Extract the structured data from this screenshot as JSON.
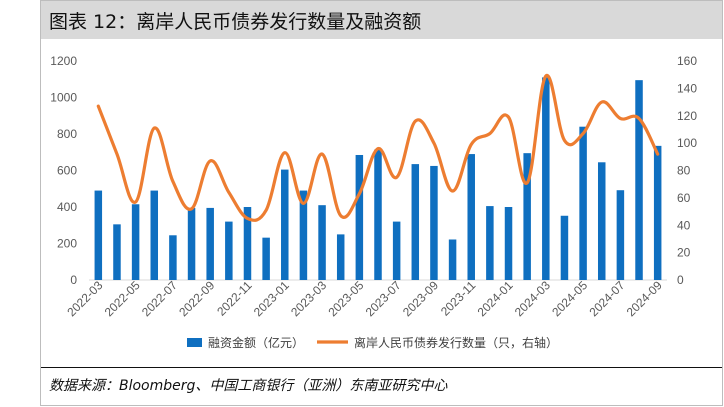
{
  "title": "图表 12：离岸人民币债券发行数量及融资额",
  "source": "数据来源：Bloomberg、中国工商银行（亚洲）东南亚研究中心",
  "colors": {
    "bar": "#0f6fc0",
    "line": "#ed7d31",
    "header_bg": "#d9d9d9"
  },
  "chart_data": {
    "type": "bar+line",
    "categories": [
      "2022-03",
      "2022-04",
      "2022-05",
      "2022-06",
      "2022-07",
      "2022-08",
      "2022-09",
      "2022-10",
      "2022-11",
      "2022-12",
      "2023-01",
      "2023-02",
      "2023-03",
      "2023-04",
      "2023-05",
      "2023-06",
      "2023-07",
      "2023-08",
      "2023-09",
      "2023-10",
      "2023-11",
      "2023-12",
      "2024-01",
      "2024-02",
      "2024-03",
      "2024-04",
      "2024-05",
      "2024-06",
      "2024-07",
      "2024-08",
      "2024-09"
    ],
    "x_tick_labels": [
      "2022-03",
      "2022-05",
      "2022-07",
      "2022-09",
      "2022-11",
      "2023-01",
      "2023-03",
      "2023-05",
      "2023-07",
      "2023-09",
      "2023-11",
      "2024-01",
      "2024-03",
      "2024-05",
      "2024-07",
      "2024-09"
    ],
    "series": [
      {
        "name": "融资金额（亿元）",
        "type": "bar",
        "axis": "left",
        "values": [
          490,
          305,
          415,
          490,
          245,
          395,
          395,
          320,
          400,
          232,
          605,
          490,
          410,
          250,
          685,
          715,
          320,
          635,
          625,
          222,
          690,
          405,
          400,
          695,
          1110,
          352,
          840,
          645,
          492,
          1095,
          735
        ]
      },
      {
        "name": "离岸人民币债券发行数量（只，右轴）",
        "type": "line",
        "axis": "right",
        "values": [
          127,
          92,
          57,
          111,
          72,
          52,
          87,
          64,
          45,
          51,
          93,
          56,
          92,
          47,
          63,
          96,
          75,
          116,
          100,
          65,
          99,
          107,
          119,
          71,
          149,
          102,
          107,
          130,
          118,
          118,
          92
        ]
      }
    ],
    "y_left": {
      "min": 0,
      "max": 1200,
      "ticks": [
        0,
        200,
        400,
        600,
        800,
        1000,
        1200
      ]
    },
    "y_right": {
      "min": 0,
      "max": 160,
      "ticks": [
        0,
        20,
        40,
        60,
        80,
        100,
        120,
        140,
        160
      ]
    },
    "legend": [
      "融资金额（亿元）",
      "离岸人民币债券发行数量（只，右轴）"
    ],
    "legend_position": "bottom"
  }
}
